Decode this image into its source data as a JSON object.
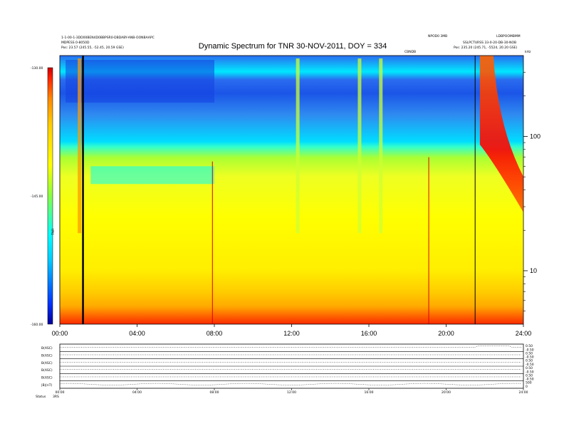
{
  "chart_data": {
    "type": "heatmap",
    "title": "Dynamic Spectrum for TNR 30-NOV-2011, DOY = 334",
    "header": {
      "left_line1": "1-1-00-1-3DD00BEN4D0BBPSR0-DBDABY-ANB-OONBAAPC",
      "left_line2": "MDPESS 0-8050D",
      "left_line3": "Pos: 23.57 (245.55, -52.45, 20.59 GSE)",
      "center_top": "NPOD0 3MB",
      "center_mid": "CBNDB",
      "right_line1": "LDBPOOMBMM",
      "right_line2": "SSLPCTURSS 33-0-20-DB-30-NOB",
      "right_line3": "Pos: 235.20 (245.71, -5524, 20.20 GSE)",
      "right_corner": "kHz"
    },
    "x_axis": {
      "unit": "UT hours",
      "ticks": [
        "00:00",
        "04:00",
        "08:00",
        "12:00",
        "16:00",
        "20:00",
        "24:00"
      ],
      "range_hours": [
        0,
        24
      ]
    },
    "y_axis_right": {
      "label": "kHz",
      "scale": "log",
      "ticks": [
        10,
        100
      ],
      "range_khz": [
        4,
        400
      ]
    },
    "colorbar": {
      "label": "TNR",
      "ticks": [
        "-130.00",
        "-145.00",
        "-160.00"
      ],
      "range_db": [
        -160,
        -130
      ],
      "colors": [
        "#000099",
        "#0044ff",
        "#00ccff",
        "#00ffff",
        "#99ff44",
        "#ffff00",
        "#ffcc00",
        "#ff8800",
        "#ff2200",
        "#cc0000"
      ]
    },
    "background_levels_by_freq": [
      {
        "freq_khz": 5,
        "level_db": -131
      },
      {
        "freq_khz": 7,
        "level_db": -137
      },
      {
        "freq_khz": 10,
        "level_db": -141
      },
      {
        "freq_khz": 20,
        "level_db": -142
      },
      {
        "freq_khz": 40,
        "level_db": -143
      },
      {
        "freq_khz": 60,
        "level_db": -148
      },
      {
        "freq_khz": 100,
        "level_db": -151
      },
      {
        "freq_khz": 200,
        "level_db": -153
      },
      {
        "freq_khz": 350,
        "level_db": -154
      }
    ],
    "features": [
      {
        "name": "type III burst",
        "time_h": 1.0,
        "level_db": -135
      },
      {
        "name": "type III burst",
        "time_h": 12.3,
        "level_db": -142
      },
      {
        "name": "type III burst",
        "time_h": 15.5,
        "level_db": -143
      },
      {
        "name": "type III burst",
        "time_h": 16.6,
        "level_db": -145
      },
      {
        "name": "broadband emission",
        "time_h": 22.3,
        "level_db": -131
      }
    ],
    "markers_hours": [
      1.2,
      21.5
    ],
    "red_markers": [
      {
        "time_h": 7.9,
        "top_khz": 65
      },
      {
        "time_h": 19.1,
        "top_khz": 70
      }
    ],
    "lower_panels": {
      "row_labels": [
        "B(ASC)",
        "B(ASC)",
        "B(ASC)",
        "B(ASC)",
        "B(ASC)",
        "|B|(nT)"
      ],
      "right_labels": [
        [
          "0.50",
          "-0.50"
        ],
        [
          "0.50",
          "-0.50"
        ],
        [
          "0.50",
          "-0.50"
        ],
        [
          "0.50",
          "-0.50"
        ],
        [
          "0.50",
          "-0.50"
        ],
        [
          "500",
          "0"
        ]
      ],
      "x_ticks": [
        "00:00",
        "04:00",
        "08:00",
        "12:00",
        "16:00",
        "20:00",
        "24:00"
      ],
      "footer_left": "Status",
      "footer_code": "3RS"
    }
  }
}
